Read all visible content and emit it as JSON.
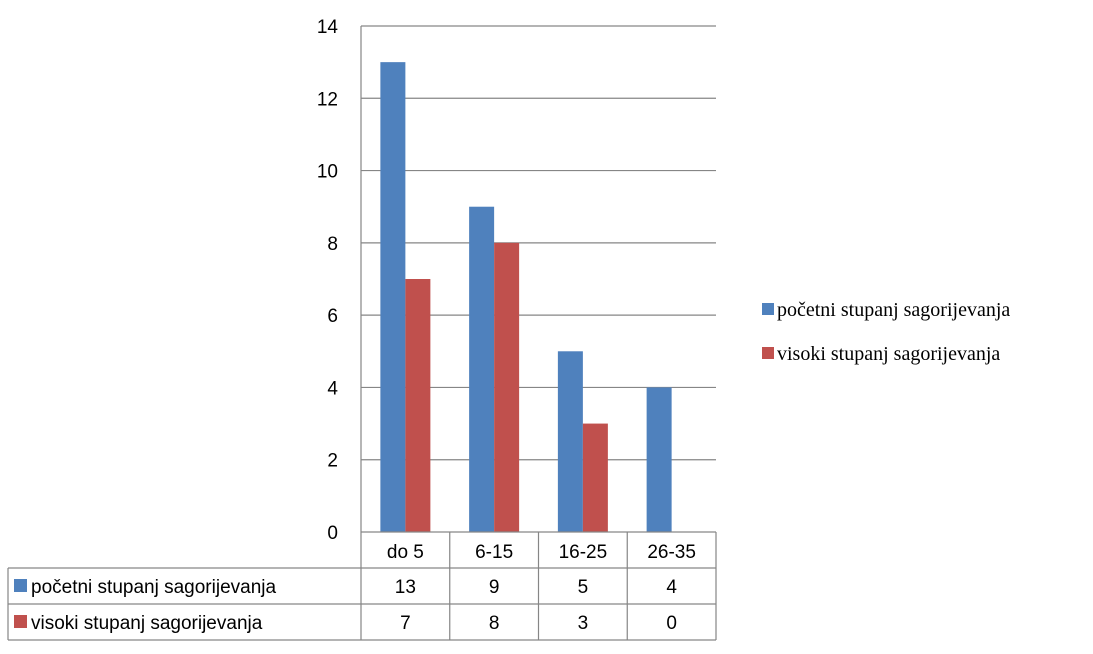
{
  "chart_data": {
    "type": "bar",
    "categories": [
      "do 5",
      "6-15",
      "16-25",
      "26-35"
    ],
    "series": [
      {
        "name": "početni stupanj sagorijevanja",
        "values": [
          13,
          9,
          5,
          4
        ],
        "color": "#4F81BD"
      },
      {
        "name": "visoki stupanj sagorijevanja",
        "values": [
          7,
          8,
          3,
          0
        ],
        "color": "#C0504D"
      }
    ],
    "ylim": [
      0,
      14
    ],
    "yticks": [
      0,
      2,
      4,
      6,
      8,
      10,
      12,
      14
    ],
    "grid": true,
    "legend_position": "right",
    "data_table": true,
    "title": "",
    "xlabel": "",
    "ylabel": ""
  }
}
